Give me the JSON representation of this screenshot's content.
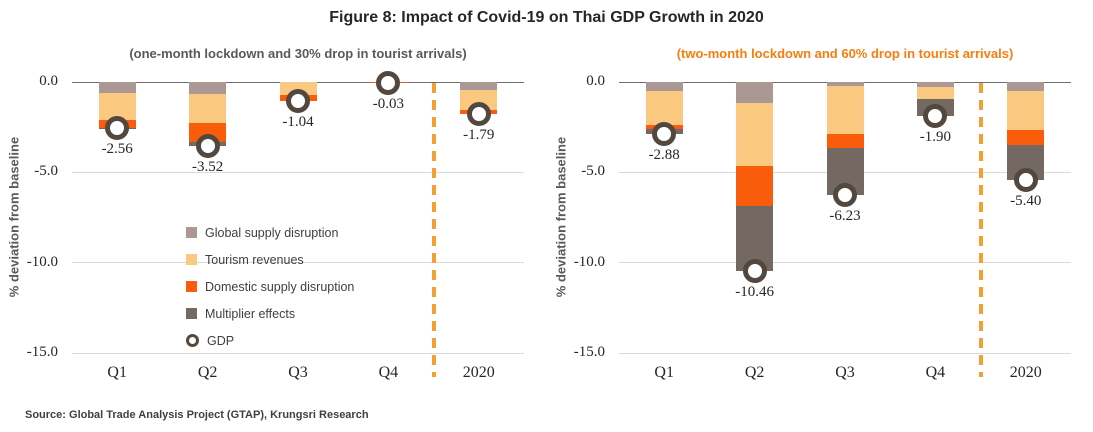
{
  "title": "Figure 8: Impact of Covid-19 on Thai GDP Growth in 2020",
  "source": "Source: Global Trade Analysis Project (GTAP), Krungsri Research",
  "colors": {
    "global_supply": "#ab9894",
    "tourism_revenues": "#fbc880",
    "domestic_supply": "#f95d0b",
    "multiplier_effects": "#736862",
    "gdp_marker_ring": "#52483f",
    "dashed_separator": "#f0a132",
    "left_subtitle_text": "#595959",
    "right_subtitle_text": "#f87d0e",
    "zero_line": "#6e6e6e",
    "gridline": "#d9d9d9",
    "axis_text": "#262626"
  },
  "legend": {
    "items": [
      {
        "label": "Global supply disruption",
        "color": "#ab9894",
        "swatch": "square"
      },
      {
        "label": "Tourism revenues",
        "color": "#fbc880",
        "swatch": "square"
      },
      {
        "label": "Domestic supply disruption",
        "color": "#f95d0b",
        "swatch": "square"
      },
      {
        "label": "Multiplier effects",
        "color": "#736862",
        "swatch": "square"
      },
      {
        "label": "GDP",
        "color": "#52483f",
        "swatch": "ring"
      }
    ]
  },
  "axis": {
    "y_title": "% deviation from baseline",
    "y_ticks": [
      {
        "label": "0.0",
        "value": 0
      },
      {
        "label": "-5.0",
        "value": -5
      },
      {
        "label": "-10.0",
        "value": -10
      },
      {
        "label": "-15.0",
        "value": -15
      }
    ],
    "ylim": [
      -15,
      0
    ]
  },
  "chart_data": [
    {
      "type": "bar",
      "subtype": "stacked-negative-with-gdp-marker",
      "title": "(one-month lockdown and 30% drop in tourist arrivals)",
      "title_color": "#595959",
      "categories": [
        "Q1",
        "Q2",
        "Q3",
        "Q4",
        "2020"
      ],
      "series": [
        {
          "name": "Global supply disruption",
          "color": "#ab9894",
          "values": [
            -0.61,
            -0.67,
            0.0,
            0.0,
            -0.44
          ]
        },
        {
          "name": "Tourism revenues",
          "color": "#fbc880",
          "values": [
            -1.48,
            -1.61,
            -0.7,
            -0.02,
            -1.11
          ]
        },
        {
          "name": "Domestic supply disruption",
          "color": "#f95d0b",
          "values": [
            -0.46,
            -1.02,
            -0.34,
            -0.01,
            -0.24
          ]
        },
        {
          "name": "Multiplier effects",
          "color": "#736862",
          "values": [
            -0.01,
            -0.22,
            0.0,
            0.0,
            0.0
          ]
        },
        {
          "name": "GDP",
          "type": "marker",
          "color": "#52483f",
          "values": [
            -2.56,
            -3.52,
            -1.04,
            -0.03,
            -1.79
          ]
        }
      ],
      "data_labels": [
        "-2.56",
        "-3.52",
        "-1.04",
        "-0.03",
        "-1.79"
      ],
      "ylabel": "% deviation from baseline",
      "ylim": [
        -15,
        0
      ],
      "separator_before_category": "2020"
    },
    {
      "type": "bar",
      "subtype": "stacked-negative-with-gdp-marker",
      "title": "(two-month lockdown and 60% drop in tourist arrivals)",
      "title_color": "#f87d0e",
      "categories": [
        "Q1",
        "Q2",
        "Q3",
        "Q4",
        "2020"
      ],
      "series": [
        {
          "name": "Global supply disruption",
          "color": "#ab9894",
          "values": [
            -0.48,
            -1.17,
            -0.22,
            -0.26,
            -0.52
          ]
        },
        {
          "name": "Tourism revenues",
          "color": "#fbc880",
          "values": [
            -1.88,
            -3.46,
            -2.68,
            -0.67,
            -2.13
          ]
        },
        {
          "name": "Domestic supply disruption",
          "color": "#f95d0b",
          "values": [
            -0.24,
            -2.22,
            -0.74,
            0.0,
            -0.83
          ]
        },
        {
          "name": "Multiplier effects",
          "color": "#736862",
          "values": [
            -0.28,
            -3.61,
            -2.59,
            -0.97,
            -1.92
          ]
        },
        {
          "name": "GDP",
          "type": "marker",
          "color": "#52483f",
          "values": [
            -2.88,
            -10.46,
            -6.23,
            -1.9,
            -5.4
          ]
        }
      ],
      "data_labels": [
        "-2.88",
        "-10.46",
        "-6.23",
        "-1.90",
        "-5.40"
      ],
      "ylabel": "% deviation from baseline",
      "ylim": [
        -15,
        0
      ],
      "separator_before_category": "2020"
    }
  ]
}
